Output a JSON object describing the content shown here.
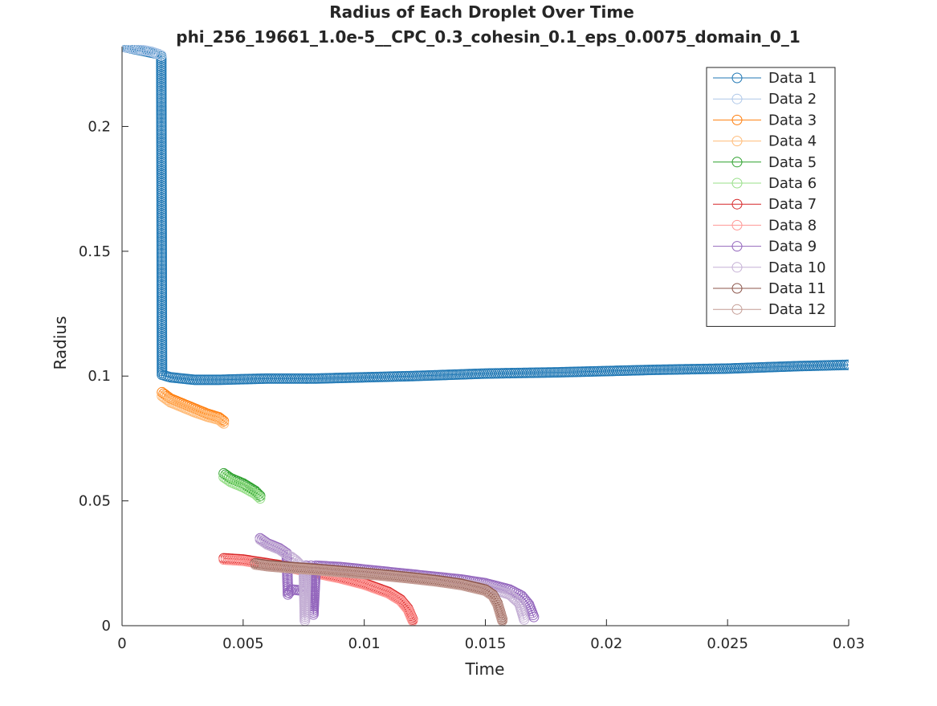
{
  "chart_data": {
    "type": "scatter",
    "title": "Radius of Each Droplet Over Time",
    "subtitle": "phi_256_19661_1.0e-5__CPC_0.3_cohesin_0.1_eps_0.0075_domain_0_1",
    "xlabel": "Time",
    "ylabel": "Radius",
    "xlim": [
      0,
      0.03
    ],
    "ylim": [
      0,
      0.232
    ],
    "xticks": [
      "0",
      "0.005",
      "0.01",
      "0.015",
      "0.02",
      "0.025",
      "0.03"
    ],
    "yticks": [
      "0",
      "0.05",
      "0.1",
      "0.15",
      "0.2"
    ],
    "legend_position": "top-right",
    "marker": "open-circle",
    "series": [
      {
        "name": "Data 1",
        "color": "#1f77b4",
        "x": [
          0,
          0.0005,
          0.001,
          0.0015,
          0.00162,
          0.00165,
          0.002,
          0.003,
          0.004,
          0.006,
          0.008,
          0.01,
          0.012,
          0.015,
          0.018,
          0.02,
          0.022,
          0.025,
          0.028,
          0.03
        ],
        "y": [
          0.232,
          0.231,
          0.23,
          0.229,
          0.228,
          0.1005,
          0.0995,
          0.0985,
          0.0985,
          0.099,
          0.099,
          0.0995,
          0.1,
          0.101,
          0.1015,
          0.102,
          0.1025,
          0.103,
          0.104,
          0.1045
        ]
      },
      {
        "name": "Data 2",
        "color": "#aec7e8",
        "x": [
          0,
          0.0003,
          0.0006,
          0.0009,
          0.0012,
          0.0015,
          0.00162
        ],
        "y": [
          0.232,
          0.2315,
          0.231,
          0.2305,
          0.23,
          0.229,
          0.2285
        ]
      },
      {
        "name": "Data 3",
        "color": "#ff7f0e",
        "x": [
          0.00165,
          0.002,
          0.0025,
          0.003,
          0.0035,
          0.004,
          0.0042
        ],
        "y": [
          0.0935,
          0.091,
          0.089,
          0.087,
          0.085,
          0.0835,
          0.082
        ]
      },
      {
        "name": "Data 4",
        "color": "#ffbb78",
        "x": [
          0.00165,
          0.002,
          0.0025,
          0.003,
          0.0035,
          0.004,
          0.0042
        ],
        "y": [
          0.092,
          0.0895,
          0.0875,
          0.0855,
          0.0838,
          0.0825,
          0.081
        ]
      },
      {
        "name": "Data 5",
        "color": "#2ca02c",
        "x": [
          0.0042,
          0.0045,
          0.005,
          0.0055,
          0.0057
        ],
        "y": [
          0.061,
          0.059,
          0.057,
          0.054,
          0.052
        ]
      },
      {
        "name": "Data 6",
        "color": "#98df8a",
        "x": [
          0.0042,
          0.0045,
          0.005,
          0.0055,
          0.0057
        ],
        "y": [
          0.0595,
          0.0575,
          0.0555,
          0.0528,
          0.051
        ]
      },
      {
        "name": "Data 7",
        "color": "#d62728",
        "x": [
          0.0042,
          0.005,
          0.006,
          0.007,
          0.008,
          0.009,
          0.01,
          0.011,
          0.0115,
          0.0118,
          0.012
        ],
        "y": [
          0.027,
          0.0265,
          0.025,
          0.0235,
          0.0215,
          0.0195,
          0.017,
          0.0135,
          0.0105,
          0.007,
          0.0025
        ]
      },
      {
        "name": "Data 8",
        "color": "#ff9896",
        "x": [
          0.0042,
          0.005,
          0.006,
          0.007,
          0.008,
          0.009,
          0.01,
          0.011,
          0.0115,
          0.0118,
          0.012
        ],
        "y": [
          0.0265,
          0.026,
          0.0245,
          0.023,
          0.021,
          0.019,
          0.0165,
          0.013,
          0.01,
          0.0065,
          0.002
        ]
      },
      {
        "name": "Data 9",
        "color": "#9467bd",
        "x": [
          0.0057,
          0.006,
          0.0065,
          0.0068,
          0.00685,
          0.007,
          0.0075,
          0.0076,
          0.0077,
          0.0078,
          0.0079,
          0.008,
          0.009,
          0.01,
          0.011,
          0.012,
          0.013,
          0.014,
          0.015,
          0.016,
          0.0165,
          0.0168,
          0.017
        ],
        "y": [
          0.035,
          0.033,
          0.031,
          0.029,
          0.0125,
          0.0145,
          0.014,
          0.024,
          0.0235,
          0.024,
          0.0045,
          0.024,
          0.0235,
          0.0225,
          0.0215,
          0.0205,
          0.0195,
          0.0185,
          0.017,
          0.0145,
          0.012,
          0.0085,
          0.0035
        ]
      },
      {
        "name": "Data 10",
        "color": "#c5b0d5",
        "x": [
          0.0057,
          0.006,
          0.0065,
          0.0068,
          0.007,
          0.0072,
          0.0075,
          0.00755,
          0.0076,
          0.0078,
          0.008,
          0.009,
          0.01,
          0.011,
          0.012,
          0.013,
          0.014,
          0.015,
          0.016,
          0.0164,
          0.0166
        ],
        "y": [
          0.0345,
          0.0325,
          0.0305,
          0.0285,
          0.0275,
          0.026,
          0.023,
          0.002,
          0.0235,
          0.023,
          0.0225,
          0.022,
          0.021,
          0.02,
          0.019,
          0.018,
          0.017,
          0.0155,
          0.0125,
          0.009,
          0.0025
        ]
      },
      {
        "name": "Data 11",
        "color": "#8c564b",
        "x": [
          0.0055,
          0.006,
          0.007,
          0.008,
          0.009,
          0.01,
          0.011,
          0.012,
          0.013,
          0.014,
          0.015,
          0.0153,
          0.0155,
          0.0157
        ],
        "y": [
          0.025,
          0.0243,
          0.0235,
          0.0228,
          0.022,
          0.0212,
          0.0203,
          0.0193,
          0.0182,
          0.0168,
          0.0145,
          0.0125,
          0.009,
          0.0025
        ]
      },
      {
        "name": "Data 12",
        "color": "#c49c94",
        "x": [
          0.0055,
          0.006,
          0.007,
          0.008,
          0.009,
          0.01,
          0.011,
          0.012,
          0.013,
          0.014,
          0.015,
          0.0153,
          0.0155,
          0.0157
        ],
        "y": [
          0.0245,
          0.0238,
          0.023,
          0.0223,
          0.0215,
          0.0207,
          0.0198,
          0.0188,
          0.0177,
          0.0163,
          0.014,
          0.012,
          0.0085,
          0.002
        ]
      }
    ]
  }
}
